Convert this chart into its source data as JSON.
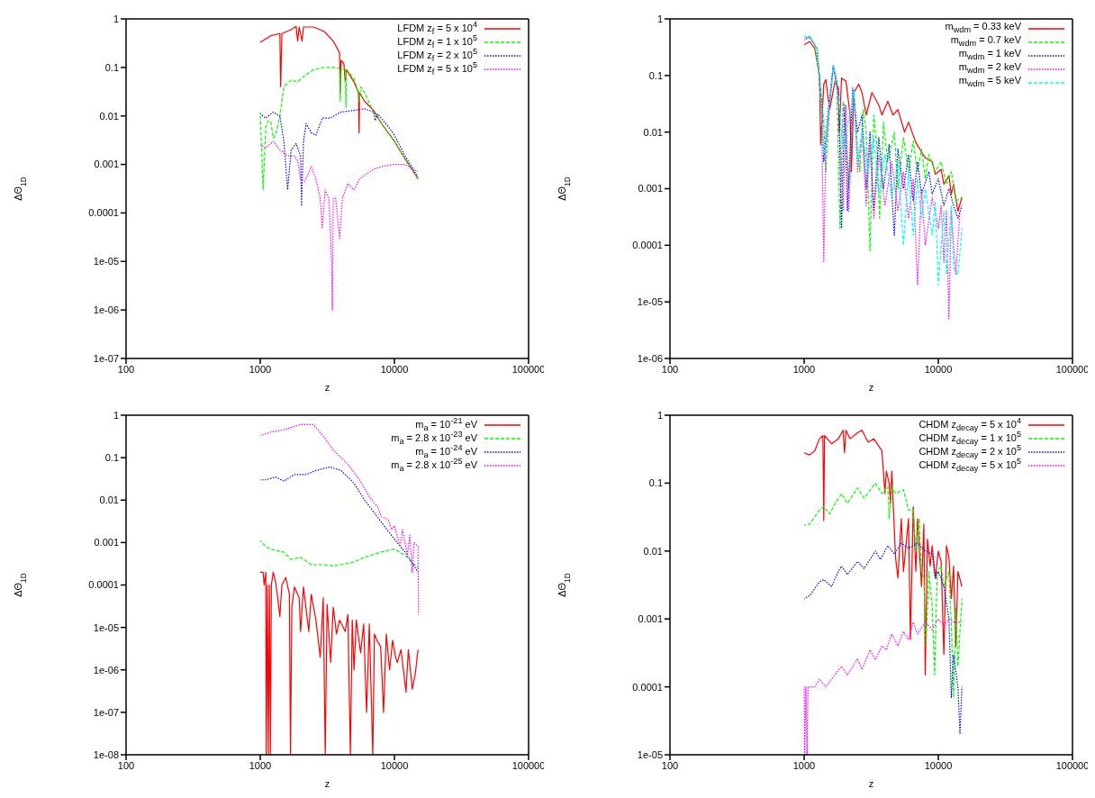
{
  "chart_data": [
    {
      "type": "line",
      "xlabel": "z",
      "ylabel": "ΔΘ$_{1D}$",
      "log": "xy",
      "xlim": [
        100,
        100000
      ],
      "xticks": [
        100,
        1000,
        10000,
        100000
      ],
      "ylim": [
        1e-07,
        1
      ],
      "yticks": [
        {
          "value": 1e-07,
          "label": "1e-07"
        },
        {
          "value": 1e-06,
          "label": "1e-06"
        },
        {
          "value": 1e-05,
          "label": "1e-05"
        },
        0.0001,
        0.001,
        0.01,
        0.1,
        1
      ],
      "legend": "top right",
      "marker": "none",
      "series": [
        {
          "name": "LFDM z$_{f}$ = 5 x 10$^{4}$",
          "color": "#ff0000",
          "line_style": "solid",
          "x": [
            1000,
            1200,
            1400,
            1420,
            1450,
            1700,
            1850,
            1900,
            1950,
            2050,
            2100,
            2500,
            3000,
            3500,
            3900,
            3950,
            4000,
            4200,
            4300,
            4400,
            5000,
            5400,
            5450,
            5500,
            6000,
            7000,
            8000,
            9000,
            10000,
            12000,
            15000
          ],
          "values": [
            0.33,
            0.45,
            0.5,
            0.04,
            0.5,
            0.6,
            0.7,
            0.35,
            0.68,
            0.35,
            0.68,
            0.68,
            0.55,
            0.35,
            0.2,
            0.03,
            0.14,
            0.12,
            0.05,
            0.09,
            0.05,
            0.03,
            0.0045,
            0.03,
            0.02,
            0.013,
            0.007,
            0.0045,
            0.003,
            0.0013,
            0.0005
          ]
        },
        {
          "name": "LFDM z$_{f}$ = 1 x 10$^{5}$",
          "color": "#00ff00",
          "line_style": "dashed",
          "x": [
            1000,
            1050,
            1100,
            1150,
            1200,
            1250,
            1300,
            1400,
            1500,
            1700,
            1900,
            2100,
            2500,
            3000,
            3500,
            3900,
            3950,
            4000,
            4300,
            4350,
            4400,
            5000,
            5400,
            5450,
            5600,
            6000,
            7000,
            8000,
            10000,
            12000,
            15000
          ],
          "values": [
            0.012,
            0.0003,
            0.006,
            0.008,
            0.0075,
            0.0035,
            0.004,
            0.01,
            0.04,
            0.055,
            0.05,
            0.065,
            0.09,
            0.1,
            0.1,
            0.095,
            0.02,
            0.09,
            0.09,
            0.015,
            0.09,
            0.06,
            0.03,
            0.02,
            0.04,
            0.03,
            0.012,
            0.007,
            0.003,
            0.0013,
            0.0005
          ]
        },
        {
          "name": "LFDM z$_{f}$ = 2 x 10$^{5}$",
          "color": "#0000ff",
          "line_style": "dotted",
          "x": [
            1000,
            1100,
            1250,
            1400,
            1500,
            1600,
            1700,
            1850,
            2000,
            2030,
            2100,
            2200,
            2400,
            2600,
            2900,
            3300,
            4000,
            5000,
            6000,
            7000,
            7200,
            7500,
            9000,
            10000,
            12000,
            15000
          ],
          "values": [
            0.011,
            0.009,
            0.012,
            0.01,
            0.003,
            0.0003,
            0.002,
            0.0027,
            0.0015,
            0.00014,
            0.003,
            0.007,
            0.0045,
            0.004,
            0.009,
            0.009,
            0.012,
            0.013,
            0.014,
            0.012,
            0.008,
            0.011,
            0.006,
            0.004,
            0.0015,
            0.00055
          ]
        },
        {
          "name": "LFDM z$_{f}$ = 5 x 10$^{5}$",
          "color": "#ff00ff",
          "line_style": "dotted",
          "x": [
            1000,
            1100,
            1250,
            1400,
            1600,
            1800,
            1900,
            2000,
            2150,
            2400,
            2600,
            2800,
            2900,
            3050,
            3250,
            3400,
            3450,
            3500,
            3650,
            3900,
            4100,
            4500,
            5000,
            5500,
            6000,
            7000,
            8000,
            10000,
            12000,
            15000
          ],
          "values": [
            0.0025,
            0.0022,
            0.003,
            0.002,
            0.0015,
            0.0015,
            0.0012,
            0.0005,
            0.00045,
            0.0009,
            0.0005,
            0.0002,
            5e-05,
            0.0003,
            0.0002,
            1e-05,
            1e-06,
            0.0002,
            0.0002,
            3e-05,
            0.0002,
            0.0004,
            0.0003,
            0.0005,
            0.0006,
            0.0008,
            0.0009,
            0.001,
            0.001,
            0.0007
          ]
        }
      ]
    },
    {
      "type": "line",
      "xlabel": "z",
      "ylabel": "ΔΘ$_{1D}$",
      "log": "xy",
      "xlim": [
        100,
        100000
      ],
      "xticks": [
        100,
        1000,
        10000,
        100000
      ],
      "ylim": [
        1e-06,
        1
      ],
      "yticks": [
        {
          "value": 1e-06,
          "label": "1e-06"
        },
        {
          "value": 1e-05,
          "label": "1e-05"
        },
        0.0001,
        0.001,
        0.01,
        0.1,
        1
      ],
      "legend": "top right",
      "marker": "none",
      "series": [
        {
          "name": "m$_{wdm}$ = 0.33 keV",
          "color": "#ff0000",
          "line_style": "solid",
          "x": [
            1000,
            1100,
            1200,
            1300,
            1330,
            1400,
            1450,
            1550,
            1700,
            1800,
            1830,
            1900,
            2050,
            2200,
            2250,
            2350,
            2550,
            2700,
            2900,
            3200,
            3600,
            3800,
            4200,
            4600,
            5000,
            5600,
            6000,
            6800,
            7500,
            8000,
            9000,
            9500,
            10500,
            11000,
            12000,
            12500,
            13000,
            14000,
            15000
          ],
          "values": [
            0.35,
            0.4,
            0.3,
            0.1,
            0.006,
            0.07,
            0.085,
            0.025,
            0.08,
            0.06,
            0.01,
            0.09,
            0.08,
            0.02,
            0.002,
            0.05,
            0.07,
            0.05,
            0.02,
            0.05,
            0.03,
            0.02,
            0.035,
            0.02,
            0.025,
            0.01,
            0.015,
            0.0065,
            0.0045,
            0.0035,
            0.003,
            0.0018,
            0.0022,
            0.0012,
            0.0017,
            0.0008,
            0.0012,
            0.0004,
            0.0007
          ]
        },
        {
          "name": "m$_{wdm}$ = 0.7 keV",
          "color": "#00ff00",
          "line_style": "dashed",
          "x": [
            1000,
            1100,
            1200,
            1300,
            1400,
            1450,
            1550,
            1650,
            1750,
            1850,
            1950,
            2050,
            2150,
            2350,
            2500,
            2600,
            2750,
            2900,
            3100,
            3300,
            3500,
            3650,
            3900,
            4200,
            4700,
            5000,
            5500,
            6000,
            6500,
            7000,
            7500,
            8000,
            8500,
            9500,
            10500,
            11500,
            12500,
            13500,
            15000
          ],
          "values": [
            0.5,
            0.48,
            0.35,
            0.1,
            0.015,
            0.002,
            0.03,
            0.15,
            0.08,
            0.0002,
            0.035,
            0.01,
            0.001,
            0.05,
            0.005,
            0.002,
            0.025,
            0.01,
            8e-05,
            0.02,
            0.005,
            0.0003,
            0.015,
            0.003,
            0.01,
            0.001,
            0.008,
            0.002,
            0.007,
            0.002,
            0.005,
            0.0015,
            0.004,
            0.002,
            0.003,
            0.0012,
            0.002,
            0.0006,
            0.0007
          ]
        },
        {
          "name": "m$_{wdm}$ = 1 keV",
          "color": "#0000ff",
          "line_style": "dotted",
          "x": [
            1000,
            1100,
            1250,
            1350,
            1400,
            1500,
            1650,
            1800,
            1900,
            2000,
            2100,
            2300,
            2500,
            2700,
            2900,
            3100,
            3300,
            3600,
            3900,
            4300,
            4700,
            5000,
            5500,
            6000,
            6500,
            7000,
            7500,
            8500,
            9000,
            10000,
            11000,
            12000,
            13000,
            14000,
            15000
          ],
          "values": [
            0.45,
            0.48,
            0.3,
            0.03,
            0.003,
            0.02,
            0.15,
            0.05,
            0.0002,
            0.03,
            0.0004,
            0.06,
            0.01,
            0.02,
            0.001,
            0.01,
            0.0004,
            0.008,
            0.001,
            0.006,
            0.00015,
            0.005,
            0.001,
            0.004,
            0.0006,
            0.003,
            0.0008,
            0.002,
            0.0008,
            0.0015,
            0.0005,
            0.001,
            0.0005,
            0.0003,
            0.0005
          ]
        },
        {
          "name": "m$_{wdm}$ = 2 keV",
          "color": "#ff00ff",
          "line_style": "dotted",
          "x": [
            1000,
            1100,
            1250,
            1350,
            1400,
            1450,
            1650,
            1800,
            1950,
            2050,
            2150,
            2350,
            2500,
            2700,
            2900,
            3100,
            3300,
            3600,
            4000,
            4500,
            5000,
            5500,
            6000,
            6500,
            7000,
            7500,
            8000,
            9000,
            10000,
            10500,
            11000,
            11500,
            12000,
            12500,
            13500,
            14500
          ],
          "values": [
            0.42,
            0.47,
            0.3,
            0.02,
            5e-05,
            0.005,
            0.15,
            0.04,
            0.0004,
            0.03,
            0.0004,
            0.055,
            0.002,
            0.01,
            0.0005,
            0.006,
            0.0003,
            0.004,
            0.0005,
            0.003,
            0.0004,
            0.002,
            0.0003,
            0.0015,
            2e-05,
            0.001,
            0.0001,
            0.0007,
            0.0002,
            0.0005,
            5e-05,
            0.0004,
            5e-06,
            0.0004,
            3e-05,
            0.0004
          ]
        },
        {
          "name": "m$_{wdm}$ = 5 keV",
          "color": "#00ffff",
          "line_style": "dashed",
          "x": [
            1000,
            1100,
            1250,
            1350,
            1400,
            1650,
            1800,
            1950,
            2350,
            2500,
            2700,
            3000,
            3300,
            3600,
            4000,
            4500,
            5000,
            5500,
            6000,
            6500,
            7000,
            7500,
            8000,
            9000,
            9500,
            10000,
            11000,
            11500,
            12500,
            13000,
            14000,
            15000
          ],
          "values": [
            0.45,
            0.5,
            0.3,
            0.02,
            0.004,
            0.15,
            0.04,
            0.005,
            0.055,
            0.003,
            0.01,
            0.002,
            0.008,
            0.0008,
            0.004,
            0.0007,
            0.003,
            0.0001,
            0.002,
            0.00015,
            0.0015,
            0.0003,
            0.001,
            0.00015,
            0.0006,
            2e-05,
            0.0004,
            3e-05,
            0.0005,
            4e-05,
            3e-05,
            0.0002
          ]
        }
      ]
    },
    {
      "type": "line",
      "xlabel": "z",
      "ylabel": "ΔΘ$_{1D}$",
      "log": "xy",
      "xlim": [
        100,
        100000
      ],
      "xticks": [
        100,
        1000,
        10000,
        100000
      ],
      "ylim": [
        1e-08,
        1
      ],
      "yticks": [
        {
          "value": 1e-08,
          "label": "1e-08"
        },
        {
          "value": 1e-07,
          "label": "1e-07"
        },
        {
          "value": 1e-06,
          "label": "1e-06"
        },
        {
          "value": 1e-05,
          "label": "1e-05"
        },
        0.0001,
        0.001,
        0.01,
        0.1,
        1
      ],
      "legend": "top right",
      "marker": "none",
      "series": [
        {
          "name": "m$_{a}$ = 10$^{-21}$ eV",
          "color": "#ff0000",
          "line_style": "solid",
          "x": [
            1000,
            1050,
            1070,
            1100,
            1110,
            1130,
            1150,
            1170,
            1190,
            1210,
            1250,
            1300,
            1350,
            1400,
            1450,
            1550,
            1650,
            1680,
            1720,
            1800,
            1950,
            2000,
            2100,
            2300,
            2400,
            2600,
            2800,
            2950,
            3050,
            3150,
            3350,
            3500,
            3700,
            3900,
            4300,
            4500,
            4700,
            4850,
            5000,
            5200,
            5600,
            5900,
            6200,
            6500,
            6900,
            7100,
            7400,
            7900,
            8300,
            8700,
            9200,
            9700,
            10200,
            10500,
            11200,
            12200,
            12700,
            13600,
            14300,
            15000
          ],
          "values": [
            0.0002,
            0.0002,
            0.0001,
            0.0002,
            1e-08,
            0.0001,
            1e-08,
            0.0001,
            1e-08,
            0.0001,
            0.0002,
            0.00012,
            5e-05,
            1.8e-05,
            0.0001,
            0.00015,
            6e-05,
            1e-08,
            3e-05,
            9e-05,
            5e-05,
            8e-06,
            9e-05,
            8e-06,
            6e-05,
            1.5e-05,
            2e-06,
            5e-05,
            1e-08,
            3.5e-05,
            1.5e-06,
            3e-05,
            7e-06,
            1.5e-05,
            8e-06,
            2e-05,
            1e-08,
            1.5e-05,
            1e-06,
            1.5e-05,
            2.5e-06,
            1.2e-05,
            1e-07,
            1.2e-05,
            1e-08,
            7e-06,
            5e-06,
            3.5e-06,
            1e-07,
            7e-06,
            1e-06,
            5e-06,
            2e-06,
            1.5e-06,
            3e-06,
            3e-07,
            3e-06,
            3.5e-07,
            8e-07,
            3e-06
          ]
        },
        {
          "name": "m$_{a}$ = 2.8 x 10$^{-23}$ eV",
          "color": "#00ff00",
          "line_style": "dashed",
          "x": [
            1000,
            1100,
            1200,
            1300,
            1500,
            1700,
            2000,
            2400,
            3000,
            3500,
            4000,
            5000,
            6000,
            8000,
            10000,
            12000,
            15000
          ],
          "values": [
            0.0011,
            0.0008,
            0.0007,
            0.00065,
            0.0006,
            0.0004,
            0.00045,
            0.0003,
            0.0003,
            0.00028,
            0.0003,
            0.00035,
            0.00045,
            0.0006,
            0.0007,
            0.0005,
            0.00025
          ]
        },
        {
          "name": "m$_{a}$ = 10$^{-24}$ eV",
          "color": "#0000ff",
          "line_style": "dotted",
          "x": [
            1000,
            1100,
            1300,
            1500,
            1800,
            2200,
            2600,
            3300,
            4000,
            5000,
            6000,
            8000,
            10000,
            12000,
            15000
          ],
          "values": [
            0.03,
            0.03,
            0.035,
            0.028,
            0.04,
            0.04,
            0.05,
            0.06,
            0.05,
            0.025,
            0.01,
            0.003,
            0.0012,
            0.0006,
            0.0002
          ]
        },
        {
          "name": "m$_{a}$ = 2.8 x 10$^{-25}$ eV",
          "color": "#ff00ff",
          "line_style": "dotted",
          "x": [
            1000,
            1200,
            1500,
            1800,
            2000,
            2500,
            3000,
            3500,
            4500,
            5500,
            6500,
            7500,
            8000,
            9000,
            9500,
            10000,
            11000,
            11500,
            12500,
            13000,
            13600,
            14000,
            15000,
            15100
          ],
          "values": [
            0.33,
            0.4,
            0.45,
            0.55,
            0.6,
            0.6,
            0.3,
            0.15,
            0.07,
            0.03,
            0.012,
            0.007,
            0.004,
            0.0035,
            0.002,
            0.0025,
            0.0008,
            0.002,
            0.0005,
            0.0015,
            0.0002,
            0.001,
            0.0008,
            2e-05
          ]
        }
      ]
    },
    {
      "type": "line",
      "xlabel": "z",
      "ylabel": "ΔΘ$_{1D}$",
      "log": "xy",
      "xlim": [
        100,
        100000
      ],
      "xticks": [
        100,
        1000,
        10000,
        100000
      ],
      "ylim": [
        1e-05,
        1
      ],
      "yticks": [
        {
          "value": 1e-05,
          "label": "1e-05"
        },
        0.0001,
        0.001,
        0.01,
        0.1,
        1
      ],
      "legend": "top right",
      "marker": "none",
      "series": [
        {
          "name": "CHDM z$_{decay}$ = 5 x 10$^{4}$",
          "color": "#ff0000",
          "line_style": "solid",
          "x": [
            1000,
            1100,
            1200,
            1300,
            1380,
            1400,
            1420,
            1600,
            1800,
            1950,
            2000,
            2050,
            2200,
            2500,
            2700,
            3000,
            3300,
            3800,
            4000,
            4100,
            4300,
            4400,
            4500,
            4800,
            5000,
            5300,
            5500,
            6000,
            6200,
            6500,
            6800,
            7000,
            7500,
            7800,
            8000,
            8300,
            8700,
            9000,
            9500,
            10000,
            10500,
            11000,
            11500,
            12000,
            12500,
            13000,
            13500,
            14000,
            15000
          ],
          "values": [
            0.28,
            0.26,
            0.3,
            0.45,
            0.5,
            0.028,
            0.5,
            0.38,
            0.45,
            0.6,
            0.28,
            0.6,
            0.45,
            0.55,
            0.6,
            0.4,
            0.45,
            0.3,
            0.07,
            0.15,
            0.1,
            0.05,
            0.15,
            0.008,
            0.004,
            0.03,
            0.005,
            0.03,
            0.0005,
            0.045,
            0.005,
            0.03,
            0.003,
            0.025,
            0.00015,
            0.015,
            0.006,
            0.012,
            0.004,
            0.01,
            0.007,
            0.0003,
            0.012,
            0.008,
            0.002,
            0.006,
            0.0004,
            0.005,
            0.003
          ]
        },
        {
          "name": "CHDM z$_{decay}$ = 1 x 10$^{5}$",
          "color": "#00ff00",
          "line_style": "dashed",
          "x": [
            1000,
            1100,
            1300,
            1400,
            1550,
            1700,
            1900,
            2100,
            2500,
            2800,
            3400,
            3800,
            4200,
            4300,
            4500,
            4800,
            5500,
            6000,
            6500,
            6800,
            7200,
            7500,
            7800,
            8100,
            8500,
            9000,
            9400,
            9800,
            10500,
            11000,
            12000,
            12500,
            13000,
            13500,
            14000,
            15000
          ],
          "values": [
            0.024,
            0.025,
            0.04,
            0.045,
            0.035,
            0.05,
            0.07,
            0.05,
            0.085,
            0.06,
            0.1,
            0.07,
            0.09,
            0.03,
            0.09,
            0.07,
            0.08,
            0.04,
            0.04,
            0.01,
            0.03,
            0.005,
            0.004,
            0.0004,
            0.005,
            0.0015,
            0.00015,
            0.005,
            0.006,
            0.003,
            0.005,
            0.0008,
            7e-05,
            0.0015,
            0.0002,
            0.002
          ]
        },
        {
          "name": "CHDM z$_{decay}$ = 2 x 10$^{5}$",
          "color": "#0000ff",
          "line_style": "dotted",
          "x": [
            1000,
            1100,
            1300,
            1400,
            1600,
            1800,
            1900,
            2100,
            2500,
            2800,
            3400,
            3700,
            4200,
            4700,
            5300,
            6000,
            7000,
            8000,
            9000,
            9500,
            10000,
            11000,
            12000,
            12500,
            13000,
            14000,
            14500,
            15000
          ],
          "values": [
            0.002,
            0.0022,
            0.0035,
            0.0038,
            0.003,
            0.005,
            0.006,
            0.0045,
            0.007,
            0.0055,
            0.01,
            0.0075,
            0.012,
            0.009,
            0.013,
            0.011,
            0.013,
            0.01,
            0.009,
            0.004,
            0.005,
            0.003,
            0.001,
            7e-05,
            0.0003,
            0.0001,
            2e-05,
            0.0001
          ]
        },
        {
          "name": "CHDM z$_{decay}$ = 5 x 10$^{5}$",
          "color": "#ff00ff",
          "line_style": "dotted",
          "x": [
            1000,
            1010,
            1030,
            1050,
            1070,
            1100,
            1200,
            1300,
            1450,
            1600,
            1900,
            2100,
            2500,
            2700,
            3100,
            3400,
            3800,
            4100,
            4500,
            5000,
            5500,
            6000,
            6500,
            7000,
            8000,
            9000,
            10000,
            11000,
            12000,
            13000,
            15000
          ],
          "values": [
            0.0001,
            1e-05,
            0.0001,
            1e-05,
            0.0001,
            0.0001,
            0.0001,
            0.00013,
            0.0001,
            0.00013,
            0.0002,
            0.00015,
            0.00026,
            0.00018,
            0.00035,
            0.00025,
            0.0004,
            0.00035,
            0.0006,
            0.0004,
            0.00065,
            0.0005,
            0.0009,
            0.0006,
            0.0009,
            0.0007,
            0.001,
            0.0008,
            0.001,
            0.0009,
            0.0009
          ]
        }
      ]
    }
  ]
}
